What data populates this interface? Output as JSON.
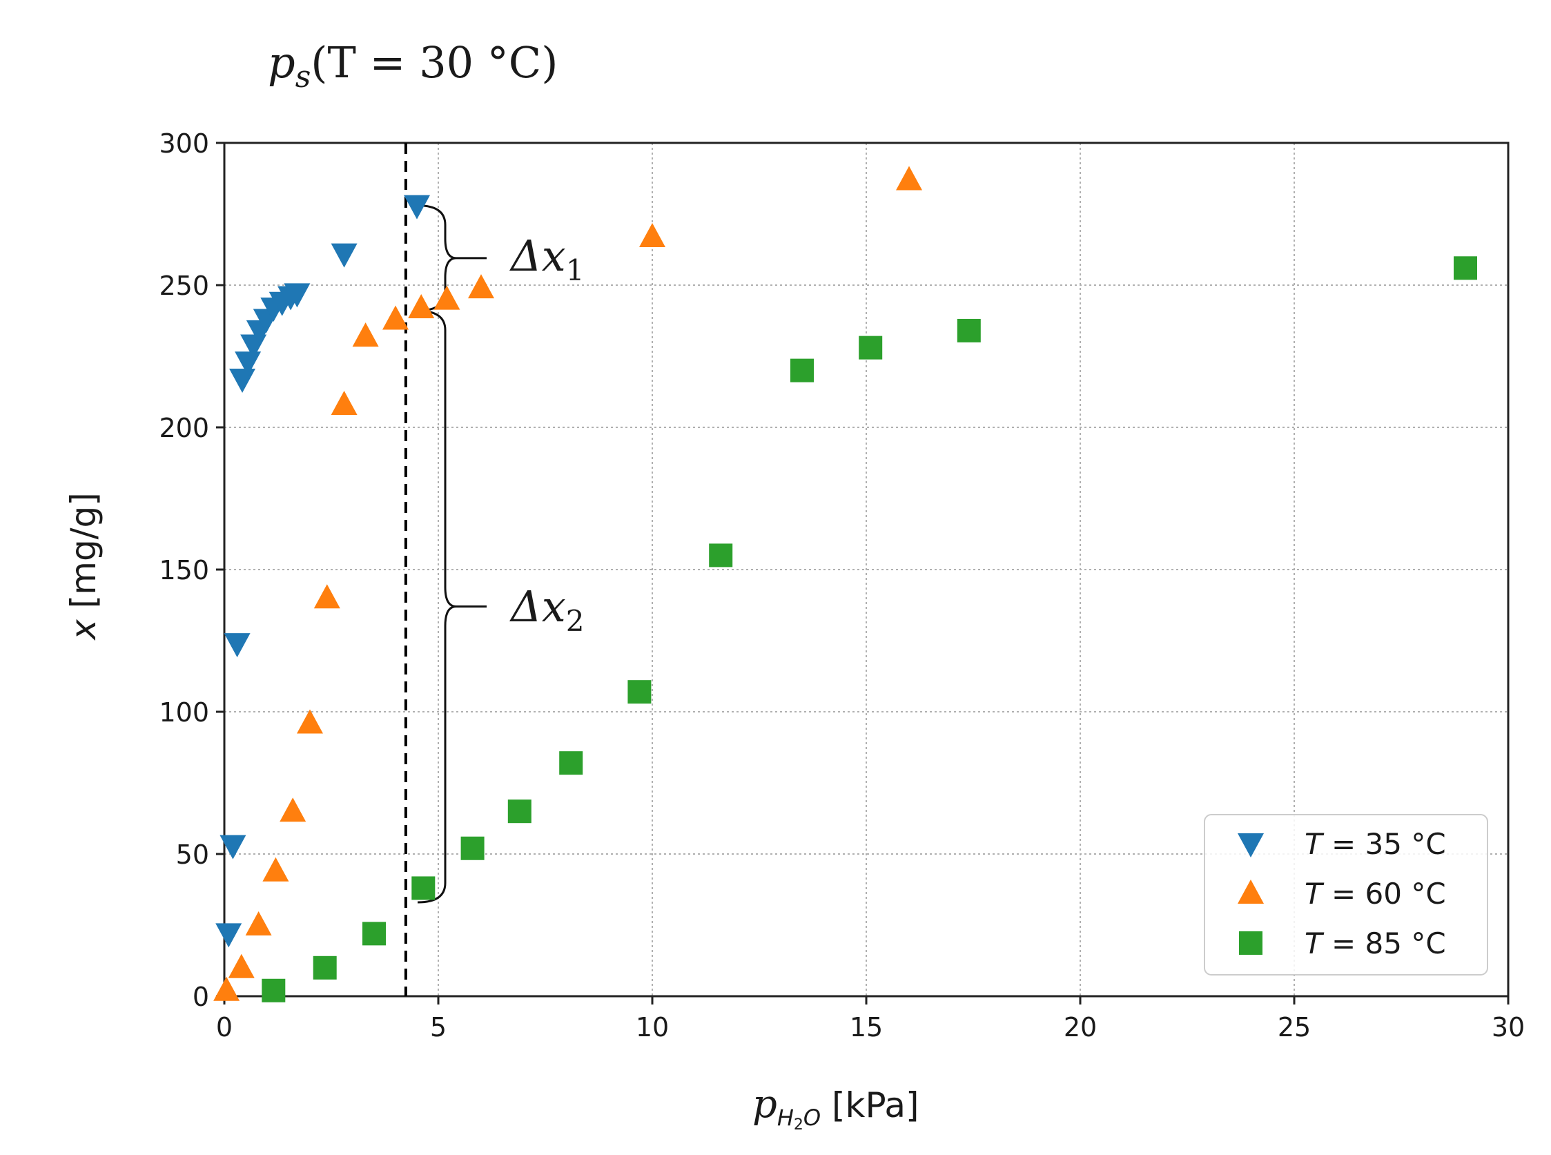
{
  "chart_data": {
    "type": "scatter",
    "annotation_title": {
      "main": "p",
      "sub": "s",
      "rest": "(T = 30 °C)"
    },
    "xlabel": {
      "main": "p",
      "sub": "H",
      "sub2": "2",
      "sub3": "O",
      "unit": "[kPa]"
    },
    "ylabel": {
      "var": "x",
      "unit": "[mg/g]"
    },
    "xlim": [
      0,
      30
    ],
    "ylim": [
      0,
      300
    ],
    "x_ticks": [
      0,
      5,
      10,
      15,
      20,
      25,
      30
    ],
    "y_ticks": [
      0,
      50,
      100,
      150,
      200,
      250,
      300
    ],
    "x_tick_labels": [
      "0",
      "5",
      "10",
      "15",
      "20",
      "25",
      "30"
    ],
    "y_tick_labels": [
      "0",
      "50",
      "100",
      "150",
      "200",
      "250",
      "300"
    ],
    "grid": true,
    "saturation_line_x": 4.24,
    "series": [
      {
        "name": "T = 35 °C",
        "legend_var": "T",
        "legend_rest": " = 35 °C",
        "marker": "triangle-down",
        "color": "#1f77b4",
        "points": [
          [
            0.1,
            22
          ],
          [
            0.2,
            53
          ],
          [
            0.3,
            124
          ],
          [
            0.42,
            217
          ],
          [
            0.55,
            223
          ],
          [
            0.68,
            229
          ],
          [
            0.82,
            234
          ],
          [
            0.98,
            238
          ],
          [
            1.15,
            242
          ],
          [
            1.35,
            244
          ],
          [
            1.55,
            246
          ],
          [
            1.7,
            247
          ],
          [
            2.8,
            261
          ],
          [
            4.5,
            278
          ]
        ]
      },
      {
        "name": "T = 60 °C",
        "legend_var": "T",
        "legend_rest": " = 60 °C",
        "marker": "triangle-up",
        "color": "#ff7f0e",
        "points": [
          [
            0.05,
            2
          ],
          [
            0.4,
            10
          ],
          [
            0.8,
            25
          ],
          [
            1.2,
            44
          ],
          [
            1.6,
            65
          ],
          [
            2.0,
            96
          ],
          [
            2.4,
            140
          ],
          [
            2.8,
            208
          ],
          [
            3.3,
            232
          ],
          [
            4.0,
            238
          ],
          [
            4.6,
            242
          ],
          [
            5.2,
            245
          ],
          [
            6.0,
            249
          ],
          [
            10.0,
            267
          ],
          [
            16.0,
            287
          ]
        ]
      },
      {
        "name": "T = 85 °C",
        "legend_var": "T",
        "legend_rest": " = 85 °C",
        "marker": "square",
        "color": "#2ca02c",
        "points": [
          [
            1.15,
            2
          ],
          [
            2.35,
            10
          ],
          [
            3.5,
            22
          ],
          [
            4.65,
            38
          ],
          [
            5.8,
            52
          ],
          [
            6.9,
            65
          ],
          [
            8.1,
            82
          ],
          [
            9.7,
            107
          ],
          [
            11.6,
            155
          ],
          [
            13.5,
            220
          ],
          [
            15.1,
            228
          ],
          [
            17.4,
            234
          ],
          [
            29.0,
            256
          ]
        ]
      }
    ],
    "annotations": [
      {
        "label_main": "Δx",
        "label_sub": "1",
        "y_top": 278,
        "y_bottom": 241
      },
      {
        "label_main": "Δx",
        "label_sub": "2",
        "y_top": 241,
        "y_bottom": 33
      }
    ],
    "legend_position": "lower-right"
  }
}
